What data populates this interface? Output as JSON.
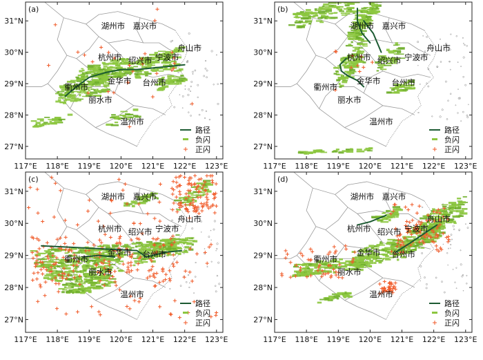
{
  "legend": {
    "path": "路径",
    "negative": "负闪",
    "positive": "正闪"
  },
  "lon_ticks": [
    "117°E",
    "118°E",
    "119°E",
    "120°E",
    "121°E",
    "122°E",
    "123°E"
  ],
  "lat_ticks": [
    "31°N",
    "30°N",
    "29°N",
    "28°N",
    "27°N"
  ],
  "colors": {
    "negative": "#8cc63f",
    "positive": "#f05a28",
    "track": "#1c5a32",
    "border": "#9a9a9a"
  },
  "panels": [
    {
      "letter": "(a)"
    },
    {
      "letter": "(b)"
    },
    {
      "letter": "(c)"
    },
    {
      "letter": "(d)"
    }
  ],
  "cities": {
    "huzhou": "湖州市",
    "jiaxing": "嘉兴市",
    "hangzhou": "杭州市",
    "shaoxing": "绍兴市",
    "ningbo": "宁波市",
    "zhoushan": "舟山市",
    "jinhua": "金华市",
    "quzhou": "衢州市",
    "taizhou": "台州市",
    "lishui": "丽水市",
    "wenzhou": "温州市"
  }
}
